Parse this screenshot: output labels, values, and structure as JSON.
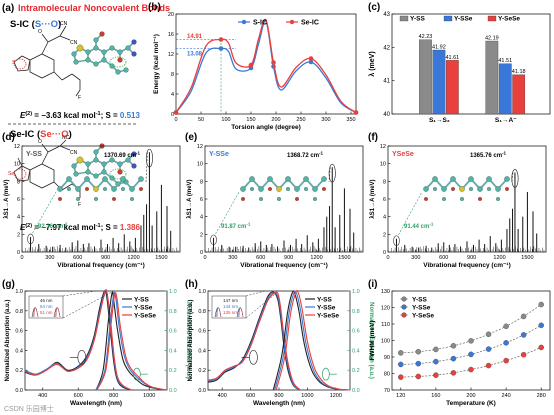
{
  "figure": {
    "panels": {
      "a": {
        "letter": "(a)",
        "title": "Intramolecular Noncovalent Bonds",
        "row1_head": "S-IC",
        "row1_paren_open": "(",
        "row1_paren_inner": "S···O",
        "row1_paren_close": ")",
        "row1_energy_prefix": "E",
        "row1_energy_sup": "(2)",
        "row1_energy_text": " = −3.63 kcal mol",
        "row1_energy_unit_sup": "-1",
        "row1_s_label": "; S = ",
        "row1_s_value": "0.513",
        "row1_atom_s": "S",
        "row1_atom_o": "O",
        "row2_head": "Se-IC",
        "row2_paren_open": "(",
        "row2_paren_inner": "Se···O",
        "row2_paren_close": ")",
        "row2_energy_prefix": "E",
        "row2_energy_sup": "(2)",
        "row2_energy_text": " = −7.97 kcal mol",
        "row2_energy_unit_sup": "-1",
        "row2_s_label": "; S = ",
        "row2_s_value": "1.386",
        "row2_atom_se": "Se",
        "row2_atom_o": "O",
        "cn": "CN",
        "nc": "NC",
        "f": "F"
      },
      "b": {
        "letter": "(b)"
      },
      "c": {
        "letter": "(c)"
      },
      "d": {
        "letter": "(d)",
        "label": "Y-SS",
        "peak_high": "1370.69 cm",
        "peak_low": "92.36 cm",
        "unit_sup": "-1"
      },
      "e": {
        "letter": "(e)",
        "label": "Y-SSe",
        "peak_high": "1368.72 cm",
        "peak_low": "91.87 cm",
        "unit_sup": "-1"
      },
      "f": {
        "letter": "(f)",
        "label": "YSeSe",
        "peak_high": "1365.76 cm",
        "peak_low": "91.44 cm",
        "unit_sup": "-1"
      },
      "g": {
        "letter": "(g)",
        "inset": [
          "46 nm",
          "54 nm",
          "51 nm"
        ]
      },
      "h": {
        "letter": "(h)",
        "inset": [
          "147 nm",
          "144 nm",
          "135 nm"
        ]
      },
      "i": {
        "letter": "(i)"
      }
    },
    "watermark": "CSDN 乐园博士"
  },
  "colors": {
    "black": "#222222",
    "blue": "#3a78d8",
    "red": "#e8403c",
    "green": "#2f9e6a",
    "gray": "#8a8a8a",
    "title_red": "#e6262e",
    "atom_s": "#d6c32a",
    "atom_o": "#d33a2a",
    "atom_c": "#4fb7a8",
    "atom_n": "#3a56c6"
  },
  "chart_data": [
    {
      "panel": "b",
      "type": "line",
      "xlabel": "Torsion angle (degree)",
      "ylabel": "Energy (kcal mol⁻¹)",
      "xlim": [
        0,
        360
      ],
      "ylim": [
        0,
        20
      ],
      "xticks": [
        0,
        50,
        100,
        150,
        200,
        250,
        300,
        350
      ],
      "yticks": [
        0,
        4,
        8,
        12,
        16,
        20
      ],
      "legend_position": "top-center",
      "annotations": [
        "14.91",
        "13.08"
      ],
      "series": [
        {
          "name": "S-IC",
          "color": "blue",
          "x": [
            0,
            30,
            60,
            90,
            105,
            120,
            150,
            165,
            180,
            195,
            210,
            240,
            270,
            300,
            330,
            360
          ],
          "y": [
            0.3,
            4.5,
            12.2,
            13.1,
            12.5,
            9.0,
            9.2,
            14.0,
            18.5,
            9.5,
            4.8,
            8.6,
            10.4,
            7.2,
            2.2,
            0.3
          ]
        },
        {
          "name": "Se-IC",
          "color": "red",
          "x": [
            0,
            30,
            60,
            90,
            105,
            120,
            150,
            165,
            180,
            195,
            210,
            240,
            270,
            300,
            330,
            360
          ],
          "y": [
            0.3,
            5.2,
            13.6,
            14.9,
            14.2,
            10.2,
            9.8,
            15.0,
            18.8,
            10.3,
            5.4,
            9.3,
            11.1,
            7.8,
            2.5,
            0.3
          ]
        }
      ]
    },
    {
      "panel": "c",
      "type": "bar",
      "ylabel": "λ (meV)",
      "ylim": [
        40,
        43
      ],
      "yticks": [
        40,
        41,
        42,
        43
      ],
      "categories": [
        "S₁→S₃",
        "S₁→A⁻"
      ],
      "legend_position": "top",
      "series": [
        {
          "name": "Y-SS",
          "color": "gray",
          "values": [
            42.23,
            42.19
          ]
        },
        {
          "name": "Y-SSe",
          "color": "blue",
          "values": [
            41.92,
            41.51
          ]
        },
        {
          "name": "Y-SeSe",
          "color": "red",
          "values": [
            41.61,
            41.18
          ]
        }
      ]
    },
    {
      "panel": "d",
      "type": "bar",
      "xlabel": "Vibrational frequency (cm⁻¹)",
      "ylabel": "λS1→A (meV)",
      "xlim": [
        0,
        1700
      ],
      "ylim": [
        0,
        12
      ],
      "xticks": [
        0,
        300,
        600,
        900,
        1200,
        1500
      ],
      "yticks": [
        0,
        2,
        4,
        6,
        8,
        10,
        12
      ],
      "x": [
        92,
        180,
        260,
        330,
        410,
        470,
        540,
        600,
        660,
        720,
        780,
        850,
        920,
        980,
        1040,
        1100,
        1160,
        1220,
        1280,
        1310,
        1340,
        1371,
        1400,
        1450,
        1500,
        1560,
        1600
      ],
      "values": [
        1.7,
        0.9,
        0.7,
        0.6,
        0.8,
        0.5,
        1.1,
        1.3,
        0.9,
        1.0,
        0.6,
        1.4,
        0.9,
        1.6,
        1.0,
        2.0,
        1.2,
        1.6,
        3.0,
        4.2,
        5.4,
        11.3,
        3.0,
        4.6,
        7.6,
        5.2,
        2.4
      ]
    },
    {
      "panel": "e",
      "type": "bar",
      "xlabel": "Vibrational frequency (cm⁻¹)",
      "ylabel": "λS1→A (meV)",
      "xlim": [
        0,
        1700
      ],
      "ylim": [
        0,
        12
      ],
      "xticks": [
        0,
        300,
        600,
        900,
        1200,
        1500
      ],
      "yticks": [
        0,
        2,
        4,
        6,
        8,
        10,
        12
      ],
      "x": [
        92,
        180,
        260,
        330,
        410,
        470,
        540,
        600,
        660,
        720,
        780,
        850,
        920,
        980,
        1040,
        1100,
        1160,
        1220,
        1280,
        1310,
        1340,
        1369,
        1400,
        1450,
        1500,
        1560,
        1600
      ],
      "values": [
        1.6,
        0.8,
        0.6,
        0.6,
        0.7,
        0.5,
        1.0,
        1.2,
        0.8,
        0.9,
        0.6,
        1.3,
        0.8,
        1.5,
        0.9,
        1.9,
        1.1,
        1.5,
        2.8,
        4.0,
        5.2,
        9.6,
        2.8,
        4.2,
        7.2,
        4.9,
        2.2
      ]
    },
    {
      "panel": "f",
      "type": "bar",
      "xlabel": "Vibrational frequency (cm⁻¹)",
      "ylabel": "λS1→A (meV)",
      "xlim": [
        0,
        1700
      ],
      "ylim": [
        0,
        12
      ],
      "xticks": [
        0,
        300,
        600,
        900,
        1200,
        1500
      ],
      "yticks": [
        0,
        2,
        4,
        6,
        8,
        10,
        12
      ],
      "x": [
        91,
        180,
        260,
        330,
        410,
        470,
        540,
        600,
        660,
        720,
        780,
        850,
        920,
        980,
        1040,
        1100,
        1160,
        1220,
        1280,
        1310,
        1340,
        1366,
        1400,
        1450,
        1500,
        1560,
        1600
      ],
      "values": [
        1.5,
        0.8,
        0.6,
        0.5,
        0.7,
        0.5,
        1.0,
        1.1,
        0.8,
        0.9,
        0.6,
        1.2,
        0.8,
        1.4,
        0.9,
        1.8,
        1.0,
        1.4,
        2.6,
        3.8,
        4.9,
        9.0,
        2.6,
        4.0,
        6.8,
        4.6,
        2.1
      ]
    },
    {
      "panel": "g",
      "type": "line",
      "xlabel": "Wavelength (nm)",
      "ylabel": "Normalized Absorption (a.u.)",
      "y2label": "Normalized Emission (a.u.)",
      "xlim": [
        300,
        1100
      ],
      "ylim": [
        0,
        1.0
      ],
      "xticks": [
        400,
        600,
        800,
        1000
      ],
      "yticks": [
        0,
        0.2,
        0.4,
        0.6,
        0.8,
        1.0
      ],
      "legend_position": "top-right",
      "series": [
        {
          "name": "Y-SS",
          "color": "black",
          "kind": "abs",
          "x": [
            300,
            360,
            420,
            480,
            540,
            600,
            650,
            690,
            720,
            745,
            760,
            780,
            800,
            820,
            850,
            900
          ],
          "y": [
            0.18,
            0.15,
            0.2,
            0.28,
            0.2,
            0.24,
            0.35,
            0.55,
            0.82,
            0.99,
            0.95,
            0.62,
            0.28,
            0.1,
            0.03,
            0.0
          ]
        },
        {
          "name": "Y-SSe",
          "color": "blue",
          "kind": "abs",
          "x": [
            300,
            360,
            420,
            480,
            540,
            600,
            650,
            690,
            720,
            745,
            760,
            780,
            800,
            820,
            850,
            900
          ],
          "y": [
            0.2,
            0.16,
            0.21,
            0.27,
            0.19,
            0.23,
            0.33,
            0.52,
            0.78,
            0.97,
            0.99,
            0.7,
            0.33,
            0.12,
            0.04,
            0.0
          ]
        },
        {
          "name": "Y-SeSe",
          "color": "red",
          "kind": "abs",
          "x": [
            300,
            360,
            420,
            480,
            540,
            600,
            650,
            690,
            720,
            745,
            760,
            780,
            800,
            820,
            850,
            900
          ],
          "y": [
            0.19,
            0.15,
            0.2,
            0.26,
            0.19,
            0.22,
            0.31,
            0.5,
            0.75,
            0.95,
            1.0,
            0.74,
            0.37,
            0.14,
            0.05,
            0.0
          ]
        },
        {
          "name": "Y-SS",
          "color": "black",
          "kind": "em",
          "x": [
            700,
            740,
            770,
            790,
            800,
            820,
            850,
            880,
            920,
            960,
            1000,
            1050,
            1100
          ],
          "y": [
            0.0,
            0.2,
            0.7,
            0.98,
            0.9,
            0.62,
            0.32,
            0.2,
            0.12,
            0.06,
            0.03,
            0.01,
            0.0
          ]
        },
        {
          "name": "Y-SSe",
          "color": "blue",
          "kind": "em",
          "x": [
            700,
            750,
            780,
            800,
            812,
            830,
            860,
            890,
            930,
            970,
            1010,
            1060,
            1100
          ],
          "y": [
            0.0,
            0.2,
            0.68,
            0.97,
            0.92,
            0.64,
            0.34,
            0.21,
            0.13,
            0.07,
            0.03,
            0.01,
            0.0
          ]
        },
        {
          "name": "Y-SeSe",
          "color": "red",
          "kind": "em",
          "x": [
            705,
            755,
            785,
            805,
            818,
            836,
            866,
            896,
            936,
            976,
            1016,
            1066,
            1100
          ],
          "y": [
            0.0,
            0.2,
            0.67,
            0.96,
            0.93,
            0.66,
            0.35,
            0.22,
            0.14,
            0.07,
            0.03,
            0.01,
            0.0
          ]
        }
      ]
    },
    {
      "panel": "h",
      "type": "line",
      "xlabel": "Wavelength (nm)",
      "ylabel": "Normalized Absorption (a.u.)",
      "y2label": "Normalized Emission (a.u.)",
      "xlim": [
        300,
        1300
      ],
      "ylim": [
        0,
        1.0
      ],
      "xticks": [
        400,
        600,
        800,
        1000,
        1200
      ],
      "yticks": [
        0,
        0.2,
        0.4,
        0.6,
        0.8,
        1.0
      ],
      "legend_position": "top-right",
      "series": [
        {
          "name": "Y-SS",
          "color": "black",
          "kind": "abs",
          "x": [
            300,
            360,
            420,
            480,
            540,
            600,
            660,
            720,
            760,
            790,
            810,
            830,
            860,
            900,
            950
          ],
          "y": [
            0.08,
            0.1,
            0.18,
            0.22,
            0.3,
            0.48,
            0.72,
            0.94,
            0.99,
            0.92,
            0.75,
            0.5,
            0.22,
            0.05,
            0.0
          ]
        },
        {
          "name": "Y-SSe",
          "color": "blue",
          "kind": "abs",
          "x": [
            300,
            360,
            420,
            480,
            540,
            600,
            660,
            720,
            760,
            790,
            810,
            830,
            860,
            900,
            950
          ],
          "y": [
            0.09,
            0.11,
            0.19,
            0.23,
            0.29,
            0.46,
            0.7,
            0.92,
            0.98,
            0.95,
            0.8,
            0.55,
            0.26,
            0.06,
            0.0
          ]
        },
        {
          "name": "Y-SeSe",
          "color": "red",
          "kind": "abs",
          "x": [
            300,
            360,
            420,
            480,
            540,
            600,
            660,
            720,
            760,
            790,
            810,
            830,
            860,
            900,
            950
          ],
          "y": [
            0.1,
            0.12,
            0.2,
            0.24,
            0.28,
            0.44,
            0.68,
            0.9,
            0.97,
            0.98,
            0.85,
            0.6,
            0.3,
            0.08,
            0.0
          ]
        },
        {
          "name": "Y-SS",
          "color": "black",
          "kind": "em",
          "x": [
            760,
            820,
            860,
            890,
            910,
            940,
            980,
            1030,
            1080,
            1130,
            1200,
            1280
          ],
          "y": [
            0.0,
            0.35,
            0.78,
            0.97,
            0.98,
            0.8,
            0.45,
            0.2,
            0.09,
            0.04,
            0.01,
            0.0
          ]
        },
        {
          "name": "Y-SSe",
          "color": "blue",
          "kind": "em",
          "x": [
            770,
            830,
            870,
            900,
            920,
            950,
            990,
            1040,
            1090,
            1140,
            1210,
            1290
          ],
          "y": [
            0.0,
            0.34,
            0.77,
            0.96,
            0.99,
            0.82,
            0.47,
            0.21,
            0.09,
            0.04,
            0.01,
            0.0
          ]
        },
        {
          "name": "Y-SeSe",
          "color": "red",
          "kind": "em",
          "x": [
            780,
            840,
            880,
            910,
            930,
            960,
            1000,
            1050,
            1100,
            1150,
            1220,
            1300
          ],
          "y": [
            0.0,
            0.33,
            0.76,
            0.95,
            1.0,
            0.84,
            0.49,
            0.22,
            0.1,
            0.04,
            0.01,
            0.0
          ]
        }
      ]
    },
    {
      "panel": "i",
      "type": "scatter",
      "xlabel": "Temperature (K)",
      "ylabel": "FWHM (meV)",
      "xlim": [
        110,
        290
      ],
      "ylim": [
        70,
        130
      ],
      "xticks": [
        120,
        160,
        200,
        240,
        280
      ],
      "yticks": [
        70,
        80,
        90,
        100,
        110,
        120,
        130
      ],
      "legend_position": "top-left",
      "x": [
        120,
        140,
        160,
        180,
        200,
        220,
        240,
        260,
        280
      ],
      "series": [
        {
          "name": "Y-SS",
          "color": "gray",
          "values": [
            92.5,
            93.2,
            94.6,
            96.8,
            99.8,
            103.8,
            108.6,
            114.6,
            121.8
          ]
        },
        {
          "name": "Y-SSe",
          "color": "blue",
          "values": [
            85.5,
            86.0,
            87.2,
            89.0,
            91.6,
            94.8,
            98.6,
            103.4,
            109.2
          ]
        },
        {
          "name": "Y-SeSe",
          "color": "red",
          "values": [
            77.8,
            78.2,
            79.0,
            80.4,
            82.4,
            84.8,
            87.8,
            91.4,
            95.8
          ]
        }
      ]
    }
  ]
}
